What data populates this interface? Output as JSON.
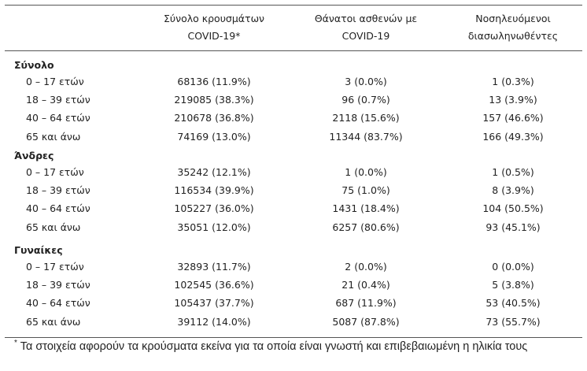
{
  "table": {
    "columns": [
      [
        "Σύνολο κρουσμάτων",
        "COVID-19*"
      ],
      [
        "Θάνατοι ασθενών με",
        "COVID-19"
      ],
      [
        "Νοσηλευόμενοι",
        "διασωληνωθέντες"
      ]
    ],
    "groups": [
      {
        "title": "Σύνολο",
        "rows": [
          [
            "0 – 17 ετών",
            "68136 (11.9%)",
            "3 (0.0%)",
            "1 (0.3%)"
          ],
          [
            "18 – 39 ετών",
            "219085 (38.3%)",
            "96 (0.7%)",
            "13 (3.9%)"
          ],
          [
            "40 – 64 ετών",
            "210678 (36.8%)",
            "2118 (15.6%)",
            "157 (46.6%)"
          ],
          [
            "65 και άνω",
            "74169 (13.0%)",
            "11344 (83.7%)",
            "166 (49.3%)"
          ]
        ]
      },
      {
        "title": "Άνδρες",
        "rows": [
          [
            "0 – 17 ετών",
            "35242 (12.1%)",
            "1 (0.0%)",
            "1 (0.5%)"
          ],
          [
            "18 – 39 ετών",
            "116534 (39.9%)",
            "75 (1.0%)",
            "8 (3.9%)"
          ],
          [
            "40 – 64 ετών",
            "105227 (36.0%)",
            "1431 (18.4%)",
            "104 (50.5%)"
          ],
          [
            "65 και άνω",
            "35051 (12.0%)",
            "6257 (80.6%)",
            "93 (45.1%)"
          ]
        ]
      },
      {
        "title": "Γυναίκες",
        "rows": [
          [
            "0 – 17 ετών",
            "32893 (11.7%)",
            "2 (0.0%)",
            "0 (0.0%)"
          ],
          [
            "18 – 39 ετών",
            "102545 (36.6%)",
            "21 (0.4%)",
            "5 (3.8%)"
          ],
          [
            "40 – 64 ετών",
            "105437 (37.7%)",
            "687 (11.9%)",
            "53 (40.5%)"
          ],
          [
            "65 και άνω",
            "39112 (14.0%)",
            "5087 (87.8%)",
            "73 (55.7%)"
          ]
        ]
      }
    ]
  },
  "footnote": {
    "marker": "*",
    "text": "Τα στοιχεία αφορούν τα κρούσματα εκείνα για τα οποία είναι γνωστή και επιβεβαιωμένη η ηλικία τους"
  }
}
